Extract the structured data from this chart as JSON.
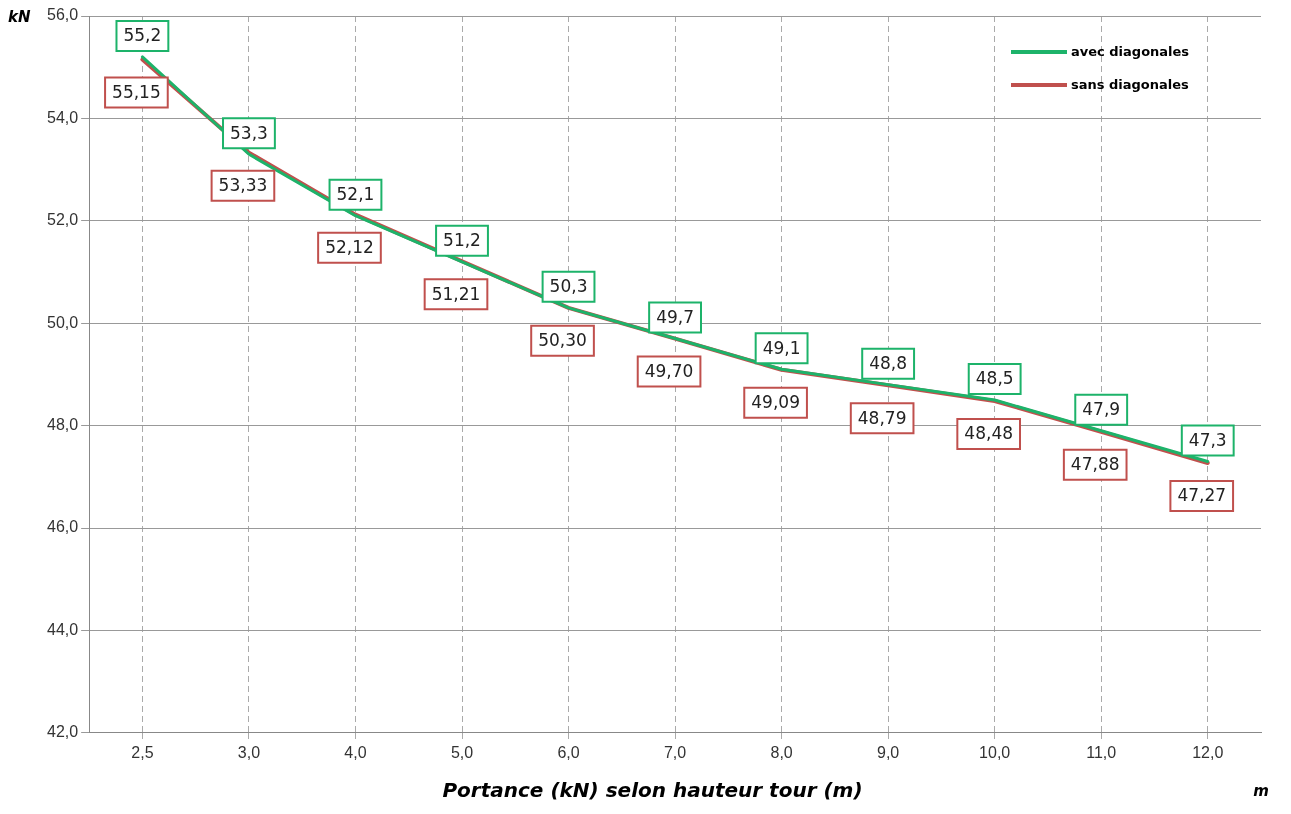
{
  "chart_data": {
    "type": "line",
    "title": "Portance (kN) selon hauteur tour (m)",
    "xlabel": "m",
    "ylabel": "kN",
    "categories": [
      "2,5",
      "3,0",
      "4,0",
      "5,0",
      "6,0",
      "7,0",
      "8,0",
      "9,0",
      "10,0",
      "11,0",
      "12,0"
    ],
    "series": [
      {
        "name": "avec diagonales",
        "color": "#1db36a",
        "values": [
          55.2,
          53.3,
          52.1,
          51.2,
          50.3,
          49.7,
          49.1,
          48.8,
          48.5,
          47.9,
          47.3
        ],
        "value_labels": [
          "55,2",
          "53,3",
          "52,1",
          "51,2",
          "50,3",
          "49,7",
          "49,1",
          "48,8",
          "48,5",
          "47,9",
          "47,3"
        ]
      },
      {
        "name": "sans diagonales",
        "color": "#c0504d",
        "values": [
          55.15,
          53.33,
          52.12,
          51.21,
          50.3,
          49.7,
          49.09,
          48.79,
          48.48,
          47.88,
          47.27
        ],
        "value_labels": [
          "55,15",
          "53,33",
          "52,12",
          "51,21",
          "50,30",
          "49,70",
          "49,09",
          "48,79",
          "48,48",
          "47,88",
          "47,27"
        ]
      }
    ],
    "ylim": [
      42,
      56
    ],
    "yticks": [
      {
        "value": 42,
        "label": "42,0"
      },
      {
        "value": 44,
        "label": "44,0"
      },
      {
        "value": 46,
        "label": "46,0"
      },
      {
        "value": 48,
        "label": "48,0"
      },
      {
        "value": 50,
        "label": "50,0"
      },
      {
        "value": 52,
        "label": "52,0"
      },
      {
        "value": 54,
        "label": "54,0"
      },
      {
        "value": 56,
        "label": "56,0"
      }
    ],
    "grid": true,
    "legend": "top right",
    "marker": "none",
    "line_style": "solid"
  }
}
